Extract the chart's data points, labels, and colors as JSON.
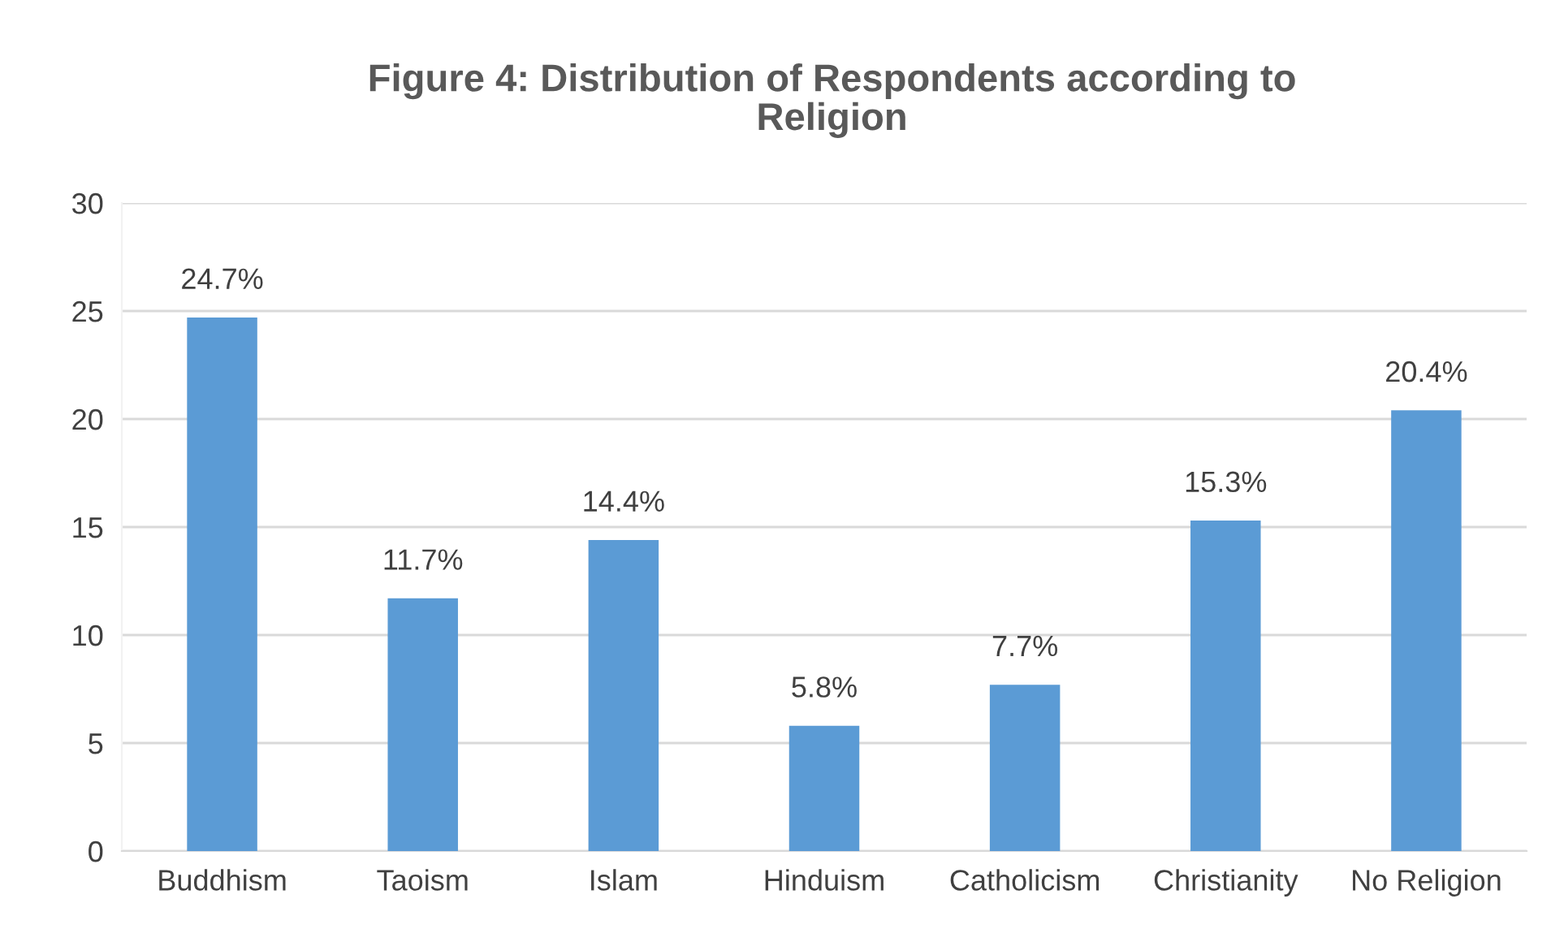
{
  "chart_data": {
    "type": "bar",
    "title": "Figure 4: Distribution of Respondents according to\nReligion",
    "categories": [
      "Buddhism",
      "Taoism",
      "Islam",
      "Hinduism",
      "Catholicism",
      "Christianity",
      "No Religion"
    ],
    "values": [
      24.7,
      11.7,
      14.4,
      5.8,
      7.7,
      15.3,
      20.4
    ],
    "value_labels": [
      "24.7%",
      "11.7%",
      "14.4%",
      "5.8%",
      "7.7%",
      "15.3%",
      "20.4%"
    ],
    "color": "#5b9bd5",
    "ylim": [
      0,
      30
    ],
    "yticks": [
      0,
      5,
      10,
      15,
      20,
      25,
      30
    ],
    "grid": "y",
    "legend": false
  }
}
